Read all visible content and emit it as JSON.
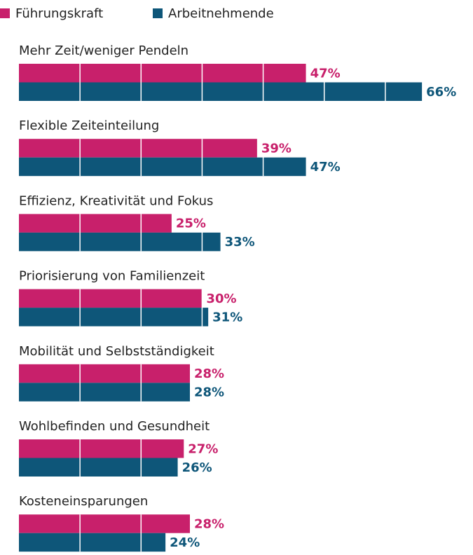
{
  "chart_data": {
    "type": "hbar",
    "categories": [
      "Mehr Zeit/weniger Pendeln",
      "Flexible Zeiteinteilung",
      "Effizienz, Kreativität und Fokus",
      "Priorisierung von Familienzeit",
      "Mobilität und Selbstständigkeit",
      "Wohlbefinden und Gesundheit",
      "Kosteneinsparungen"
    ],
    "series": [
      {
        "name": "Führungskraft",
        "color": "#c8206b",
        "values": [
          47,
          39,
          25,
          30,
          28,
          27,
          28
        ],
        "value_labels": [
          "47%",
          "39%",
          "25%",
          "30%",
          "28%",
          "27%",
          "28%"
        ]
      },
      {
        "name": "Arbeitnehmende",
        "color": "#0e5679",
        "values": [
          66,
          47,
          33,
          31,
          28,
          26,
          24
        ],
        "value_labels": [
          "66%",
          "47%",
          "33%",
          "31%",
          "28%",
          "26%",
          "24%"
        ]
      }
    ],
    "xlim": [
      0,
      70
    ],
    "xticks": [
      10,
      20,
      30,
      40,
      50,
      60
    ],
    "grid": true,
    "legend": "top-left"
  }
}
